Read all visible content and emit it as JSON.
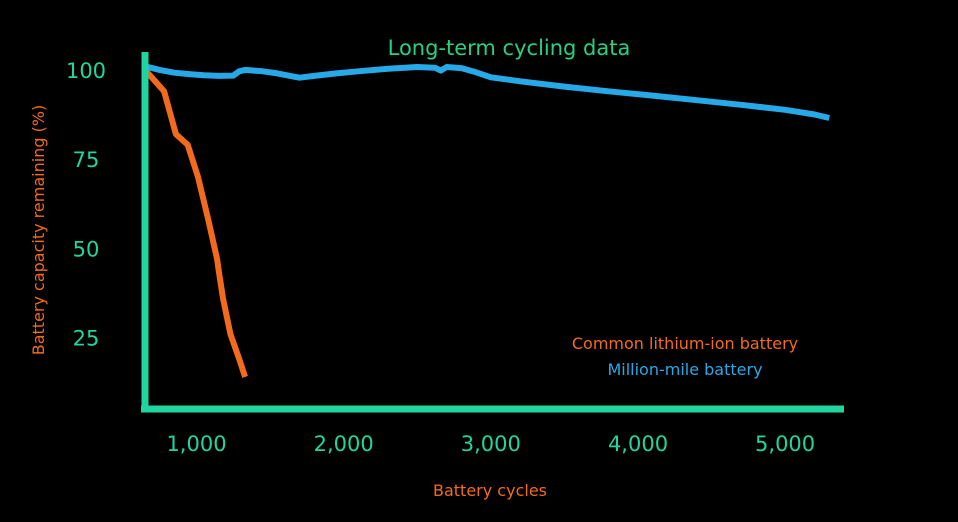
{
  "chart_data": {
    "type": "line",
    "title": "Long-term cycling data",
    "xlabel": "Battery cycles",
    "ylabel": "Battery capacity remaining (%)",
    "xlim": [
      650,
      5400
    ],
    "ylim": [
      5,
      105
    ],
    "x_ticks": [
      {
        "value": 1000,
        "label": "1,000"
      },
      {
        "value": 2000,
        "label": "2,000"
      },
      {
        "value": 3000,
        "label": "3,000"
      },
      {
        "value": 4000,
        "label": "4,000"
      },
      {
        "value": 5000,
        "label": "5,000"
      }
    ],
    "y_ticks": [
      {
        "value": 100,
        "label": "100"
      },
      {
        "value": 75,
        "label": "75"
      },
      {
        "value": 50,
        "label": "50"
      },
      {
        "value": 25,
        "label": "25"
      }
    ],
    "grid": false,
    "legend_position": "bottom-right",
    "series": [
      {
        "name": "Common lithium-ion battery",
        "color": "#F26B1D",
        "points": [
          [
            650,
            100
          ],
          [
            780,
            94
          ],
          [
            860,
            82
          ],
          [
            940,
            79
          ],
          [
            1010,
            70
          ],
          [
            1080,
            58
          ],
          [
            1140,
            47
          ],
          [
            1150,
            44
          ],
          [
            1180,
            36
          ],
          [
            1230,
            26
          ],
          [
            1290,
            19
          ],
          [
            1330,
            14
          ]
        ]
      },
      {
        "name": "Million-mile battery",
        "color": "#27A9E8",
        "points": [
          [
            650,
            101
          ],
          [
            750,
            100
          ],
          [
            850,
            99.2
          ],
          [
            950,
            98.8
          ],
          [
            1050,
            98.5
          ],
          [
            1150,
            98.3
          ],
          [
            1250,
            98.4
          ],
          [
            1290,
            99.6
          ],
          [
            1330,
            100
          ],
          [
            1450,
            99.6
          ],
          [
            1550,
            99
          ],
          [
            1650,
            98.2
          ],
          [
            1700,
            97.8
          ],
          [
            1800,
            98.3
          ],
          [
            1950,
            99
          ],
          [
            2100,
            99.6
          ],
          [
            2300,
            100.3
          ],
          [
            2500,
            100.8
          ],
          [
            2620,
            100.6
          ],
          [
            2660,
            99.8
          ],
          [
            2700,
            100.8
          ],
          [
            2800,
            100.5
          ],
          [
            2900,
            99.3
          ],
          [
            3000,
            97.9
          ],
          [
            3200,
            96.8
          ],
          [
            3500,
            95.3
          ],
          [
            3800,
            94
          ],
          [
            4100,
            92.8
          ],
          [
            4400,
            91.5
          ],
          [
            4700,
            90.2
          ],
          [
            5000,
            88.8
          ],
          [
            5200,
            87.5
          ],
          [
            5300,
            86.5
          ]
        ]
      }
    ]
  },
  "colors": {
    "background": "#000000",
    "title": "#27D17F",
    "axis": "#1FD6A0",
    "tick_text": "#1FD6A0",
    "axis_title": "#F26B1D"
  }
}
